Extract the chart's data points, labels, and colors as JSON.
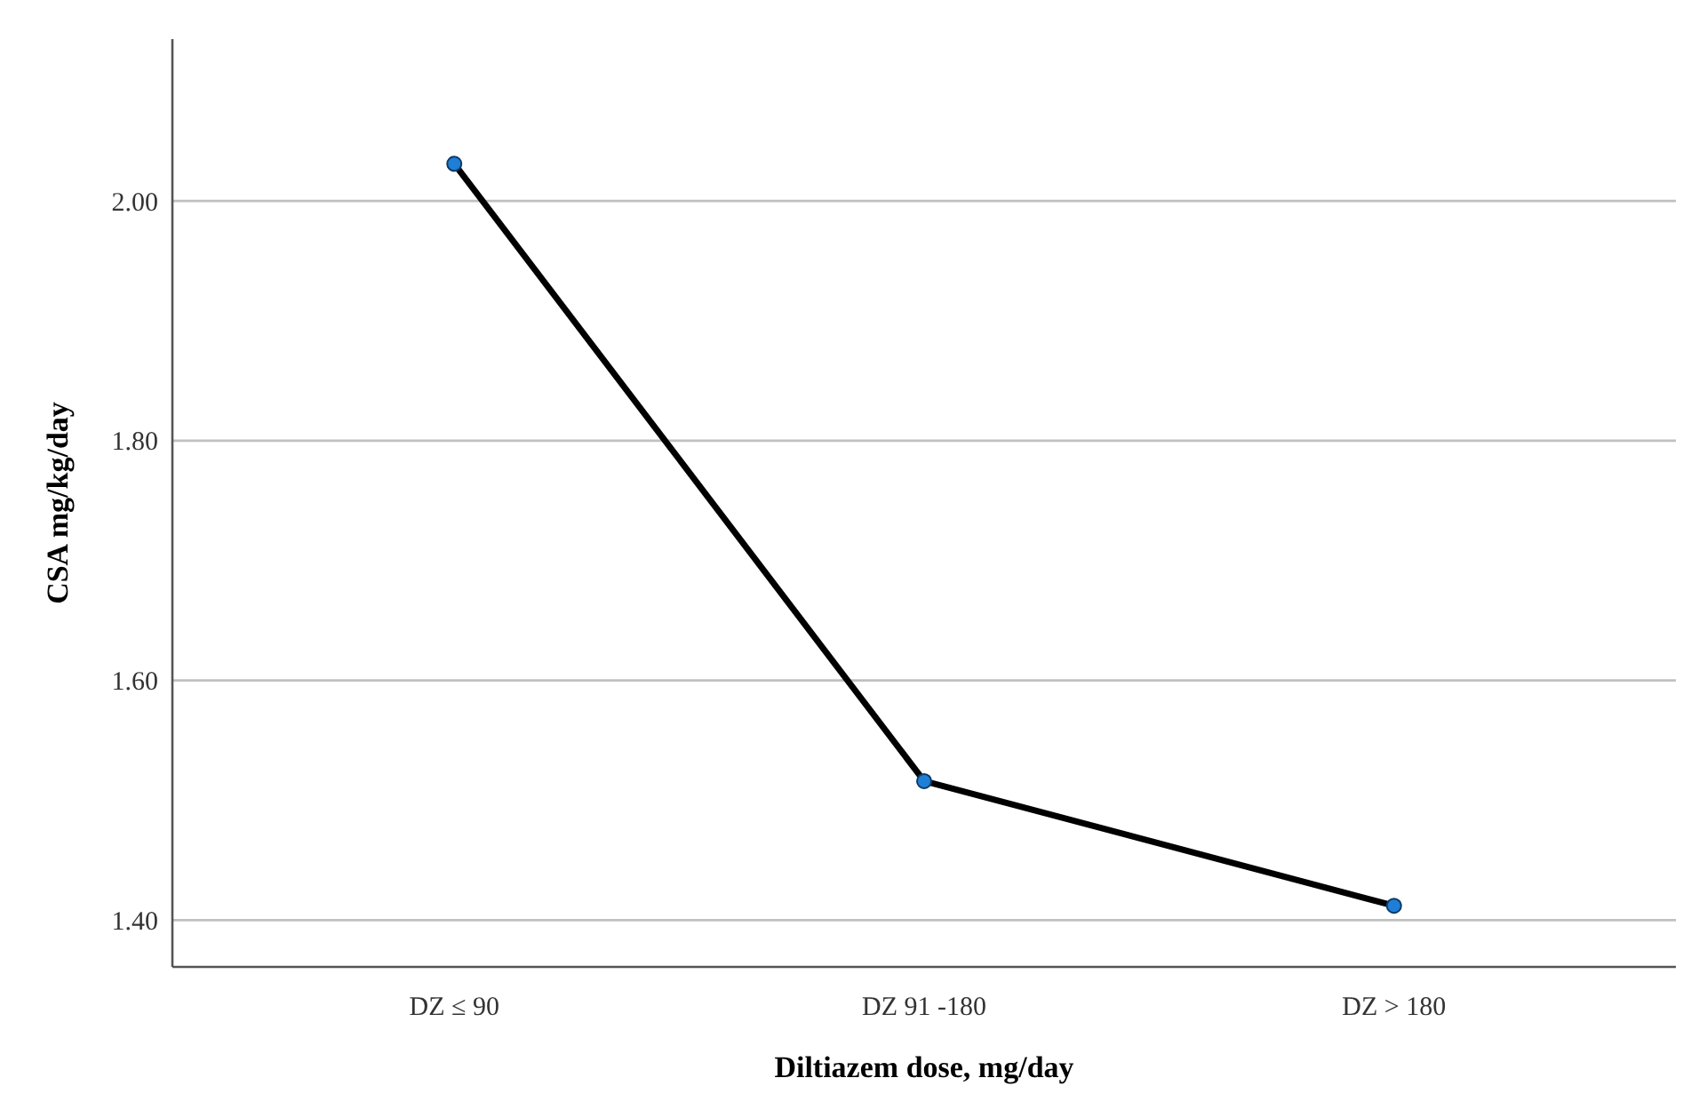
{
  "chart_data": {
    "type": "line",
    "xlabel": "Diltiazem dose, mg/day",
    "ylabel": "CSA mg/kg/day",
    "categories": [
      "DZ ≤ 90",
      "DZ 91 -180",
      "DZ > 180"
    ],
    "series": [
      {
        "color": "#000000",
        "values": [
          2.031,
          1.516,
          1.412
        ]
      }
    ],
    "marker": "circle",
    "line_style": "solid",
    "ylim": [
      1.361,
      2.135
    ],
    "yticks": [
      {
        "value": 1.4,
        "label": "1.40"
      },
      {
        "value": 1.6,
        "label": "1.60"
      },
      {
        "value": 1.8,
        "label": "1.80"
      },
      {
        "value": 2.0,
        "label": "2.00"
      }
    ],
    "grid": "y"
  }
}
